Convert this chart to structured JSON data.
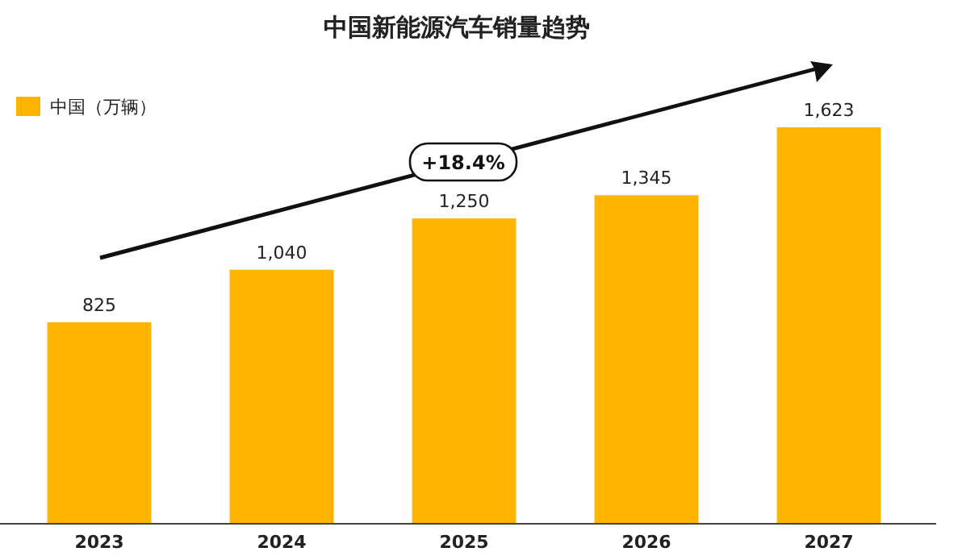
{
  "chart_data": {
    "type": "bar",
    "title": "中国新能源汽车销量趋势",
    "categories": [
      "2023",
      "2024",
      "2025",
      "2026",
      "2027"
    ],
    "series": [
      {
        "name": "中国（万辆）",
        "color": "#ffb400",
        "values": [
          825,
          1040,
          1250,
          1345,
          1623
        ],
        "value_labels": [
          "825",
          "1,040",
          "1,250",
          "1,345",
          "1,623"
        ]
      }
    ],
    "legend": "top left",
    "annotations": [
      "+18.4%"
    ]
  }
}
